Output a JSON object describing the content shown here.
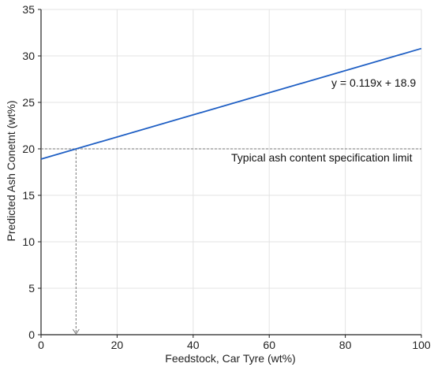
{
  "chart_data": {
    "type": "line",
    "xlabel": "Feedstock, Car Tyre (wt%)",
    "ylabel": "Predicted Ash Conetnt (wt%)",
    "xlim": [
      0,
      100
    ],
    "ylim": [
      0,
      35
    ],
    "x_ticks": [
      0,
      20,
      40,
      60,
      80,
      100
    ],
    "y_ticks": [
      0,
      5,
      10,
      15,
      20,
      25,
      30,
      35
    ],
    "grid": true,
    "series": [
      {
        "x": [
          0,
          100
        ],
        "y": [
          18.9,
          30.8
        ],
        "color": "#1f5fc4"
      }
    ],
    "reference_line": {
      "y": 20,
      "label": "Typical ash content specification limit",
      "style": "dashed",
      "color": "#777777"
    },
    "drop_line": {
      "x": 9.2,
      "y_from": 20,
      "y_to": 0,
      "style": "dashed-arrow",
      "color": "#777777"
    },
    "equation_label": "y = 0.119x + 18.9"
  }
}
